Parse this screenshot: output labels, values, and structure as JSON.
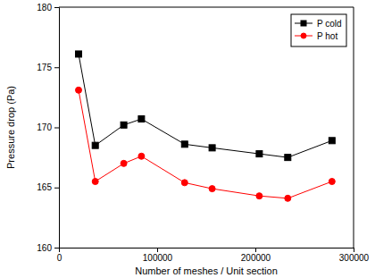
{
  "chart_data": {
    "type": "line",
    "x_label": "Number of meshes / Unit section",
    "y_label": "Pressure drop (Pa)",
    "x": [
      20000,
      37000,
      66000,
      84000,
      128000,
      156000,
      204000,
      233000,
      278000
    ],
    "series": [
      {
        "name": "P cold",
        "color": "#000000",
        "marker": "square",
        "line_style": "solid",
        "values": [
          176.1,
          168.5,
          170.2,
          170.7,
          168.6,
          168.3,
          167.8,
          167.5,
          168.9
        ]
      },
      {
        "name": "P hot",
        "color": "#ff0000",
        "marker": "circle",
        "line_style": "solid",
        "values": [
          173.1,
          165.5,
          167.0,
          167.6,
          165.4,
          164.9,
          164.3,
          164.1,
          165.5
        ]
      }
    ],
    "xlim": [
      0,
      300000
    ],
    "xticks": [
      0,
      100000,
      200000,
      300000
    ],
    "ylim": [
      160,
      180
    ],
    "yticks": [
      160,
      165,
      170,
      175,
      180
    ],
    "grid": false,
    "legend": "upper right"
  }
}
